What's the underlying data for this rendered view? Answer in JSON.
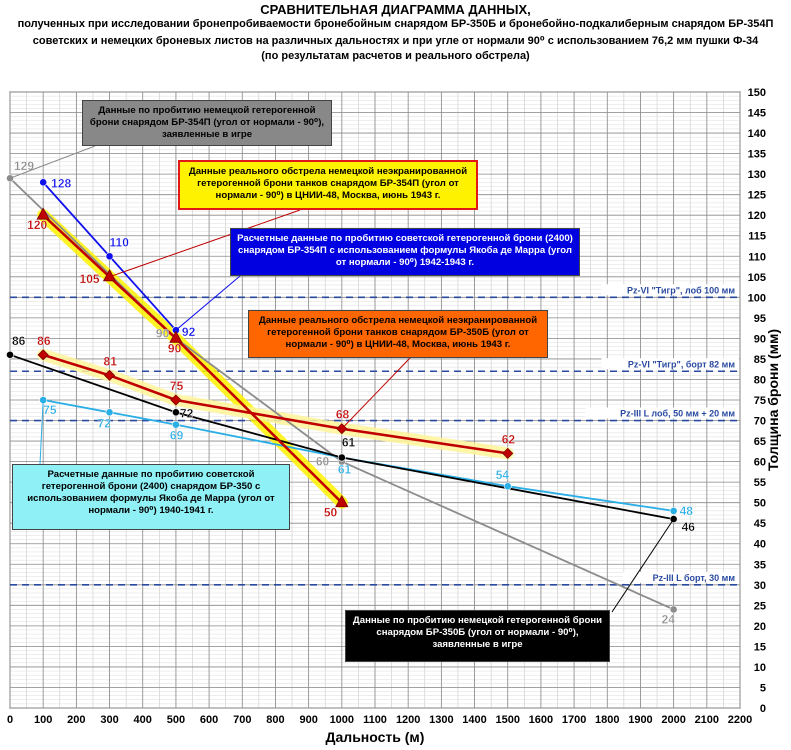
{
  "title": {
    "line1": "СРАВНИТЕЛЬНАЯ ДИАГРАММА ДАННЫХ,",
    "line2": "полученных при исследовании бронепробиваемости бронебойным снарядом БР-350Б и бронебойно-подкалиберным снарядом БР-354П",
    "line3": "советских и немецких броневых листов на различных дальностях и при угле от нормали 90⁰ с использованием 76,2 мм пушки Ф-34",
    "line4": "(по результатам расчетов и реального обстрела)"
  },
  "chart_data": {
    "type": "line",
    "xlabel": "Дальность (м)",
    "ylabel": "Толщина брони (мм)",
    "xlim": [
      0,
      2200
    ],
    "ylim": [
      0,
      150
    ],
    "xticks": [
      0,
      100,
      200,
      300,
      400,
      500,
      600,
      700,
      800,
      900,
      1000,
      1100,
      1200,
      1300,
      1400,
      1500,
      1600,
      1700,
      1800,
      1900,
      2000,
      2100,
      2200
    ],
    "yticks": [
      0,
      5,
      10,
      15,
      20,
      25,
      30,
      35,
      40,
      45,
      50,
      55,
      60,
      65,
      70,
      75,
      80,
      85,
      90,
      95,
      100,
      105,
      110,
      115,
      120,
      125,
      130,
      135,
      140,
      145,
      150
    ],
    "grid": true,
    "series": [
      {
        "key": "game354",
        "color": "#8c8c8c",
        "marker": "circle",
        "points": [
          [
            0,
            129
          ],
          [
            500,
            90
          ],
          [
            1000,
            60
          ],
          [
            2000,
            24
          ]
        ],
        "labels": [
          "129",
          "90",
          "60",
          "24"
        ]
      },
      {
        "key": "calc354",
        "color": "#1010ee",
        "marker": "circle",
        "points": [
          [
            100,
            128
          ],
          [
            300,
            110
          ],
          [
            500,
            92
          ]
        ],
        "labels": [
          "128",
          "110",
          "92"
        ]
      },
      {
        "key": "real354",
        "color": "#c00000",
        "marker": "triangle",
        "highlight": "#fff200",
        "points": [
          [
            100,
            120
          ],
          [
            300,
            105
          ],
          [
            500,
            90
          ],
          [
            1000,
            50
          ]
        ],
        "labels": [
          "120",
          "105",
          "90",
          "50"
        ]
      },
      {
        "key": "game350",
        "color": "#000000",
        "marker": "circle",
        "points": [
          [
            0,
            86
          ],
          [
            500,
            72
          ],
          [
            1000,
            61
          ],
          [
            2000,
            46
          ]
        ],
        "labels": [
          "86",
          "72",
          "61",
          "46"
        ]
      },
      {
        "key": "calc350",
        "color": "#2aaee6",
        "marker": "circle",
        "points": [
          [
            100,
            75
          ],
          [
            300,
            72
          ],
          [
            500,
            69
          ],
          [
            1000,
            61
          ],
          [
            1500,
            54
          ],
          [
            2000,
            48
          ]
        ],
        "labels": [
          "75",
          "72",
          "69",
          "61",
          "54",
          "48"
        ]
      },
      {
        "key": "real350",
        "color": "#c00000",
        "marker": "diamond",
        "highlight": "#fff59a",
        "points": [
          [
            100,
            86
          ],
          [
            300,
            81
          ],
          [
            500,
            75
          ],
          [
            1000,
            68
          ],
          [
            1500,
            62
          ]
        ],
        "labels": [
          "86",
          "81",
          "75",
          "68",
          "62"
        ]
      }
    ],
    "reference_lines": [
      {
        "y": 100,
        "label": "Pz-VI \"Тигр\", лоб 100 мм"
      },
      {
        "y": 82,
        "label": "Pz-VI \"Тигр\", борт 82 мм"
      },
      {
        "y": 70,
        "label": "Pz-III L лоб, 50 мм + 20 мм"
      },
      {
        "y": 30,
        "label": "Pz-III L борт, 30 мм"
      }
    ],
    "annotations": [
      {
        "key": "game354",
        "bg": "#888888",
        "color": "#000000",
        "text": "Данные по пробитию немецкой гетерогенной брони снарядом БР-354П (угол от нормали - 90⁰), заявленные в игре"
      },
      {
        "key": "real354",
        "bg": "#fff200",
        "color": "#000000",
        "text": "Данные реального обстрела немецкой неэкранированной гетерогенной брони танков снарядом БР-354П (угол от нормали - 90⁰) в ЦНИИ-48, Москва, июнь 1943 г."
      },
      {
        "key": "calc354",
        "bg": "#0000e0",
        "color": "#ffffff",
        "text": "Расчетные данные по пробитию советской гетерогенной брони (2400) снарядом БР-354П с использованием формулы Якоба де Марра (угол от нормали - 90⁰) 1942-1943 г."
      },
      {
        "key": "real350",
        "bg": "#ff6600",
        "color": "#000000",
        "text": "Данные реального обстрела немецкой неэкранированной гетерогенной брони танков снарядом БР-350Б (угол от нормали - 90⁰) в ЦНИИ-48, Москва, июнь 1943 г."
      },
      {
        "key": "calc350",
        "bg": "#8ff0f5",
        "color": "#000000",
        "text": "Расчетные данные по пробитию советской гетерогенной брони (2400) снарядом БР-350 с использованием формулы Якоба де Марра (угол от нормали - 90⁰) 1940-1941 г."
      },
      {
        "key": "game350",
        "bg": "#000000",
        "color": "#ffffff",
        "text": "Данные по пробитию немецкой гетерогенной брони снарядом БР-350Б (угол от нормали - 90⁰), заявленные в игре"
      }
    ]
  }
}
